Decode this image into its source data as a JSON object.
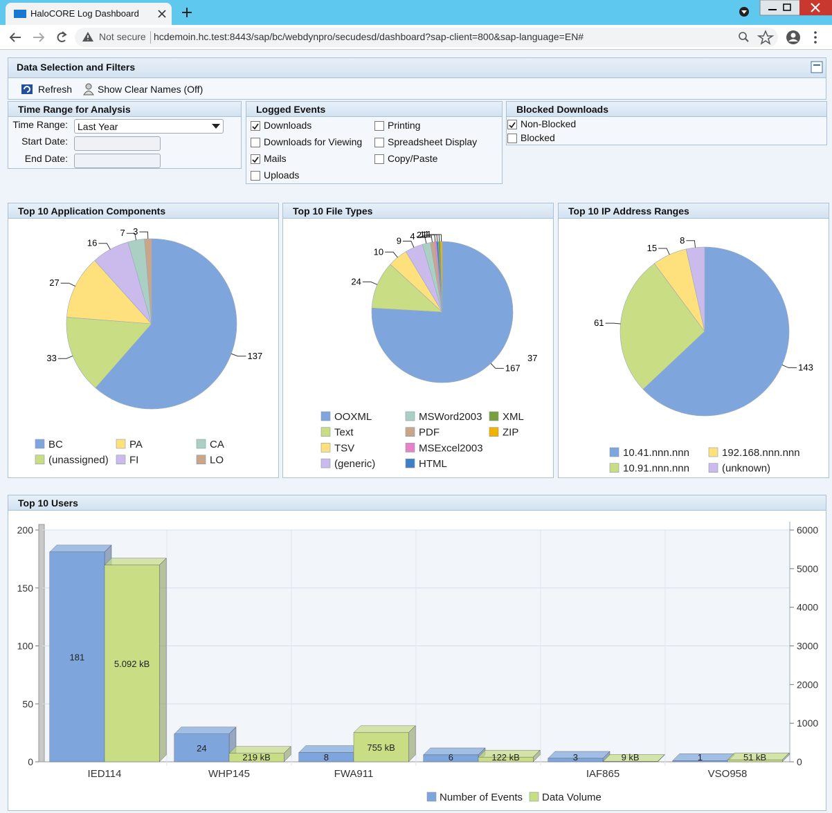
{
  "browser": {
    "tab_title": "HaloCORE Log Dashboard",
    "security": "Not secure",
    "url": "hcdemoin.hc.test:8443/sap/bc/webdynpro/secudesd/dashboard?sap-client=800&sap-language=EN#"
  },
  "filters": {
    "title": "Data Selection and Filters",
    "toolbar": [
      "Refresh",
      "Show Clear Names (Off)"
    ],
    "time_range": {
      "title": "Time Range for Analysis",
      "labels": [
        "Time Range:",
        "Start Date:",
        "End Date:"
      ],
      "selected": "Last Year"
    },
    "logged_events": {
      "title": "Logged Events",
      "options": [
        {
          "label": "Downloads",
          "checked": true
        },
        {
          "label": "Downloads for Viewing",
          "checked": false
        },
        {
          "label": "Mails",
          "checked": true
        },
        {
          "label": "Uploads",
          "checked": false
        },
        {
          "label": "Printing",
          "checked": false
        },
        {
          "label": "Spreadsheet Display",
          "checked": false
        },
        {
          "label": "Copy/Paste",
          "checked": false
        }
      ]
    },
    "blocked_downloads": {
      "title": "Blocked Downloads",
      "options": [
        {
          "label": "Non-Blocked",
          "checked": true
        },
        {
          "label": "Blocked",
          "checked": false
        }
      ]
    }
  },
  "chart_data": [
    {
      "type": "pie",
      "title": "Top 10 Application Components",
      "categories": [
        "BC",
        "(unassigned)",
        "PA",
        "FI",
        "CA",
        "LO"
      ],
      "values": [
        137,
        33,
        27,
        16,
        7,
        3
      ],
      "colors": [
        "#7fa6dc",
        "#c8dd84",
        "#fee17c",
        "#cbbbed",
        "#aad0c3",
        "#c9a68a"
      ]
    },
    {
      "type": "pie",
      "title": "Top 10 File Types",
      "categories": [
        "OOXML",
        "Text",
        "TSV",
        "(generic)",
        "MSWord2003",
        "PDF",
        "MSExcel2003",
        "HTML",
        "XML",
        "ZIP"
      ],
      "values": [
        167,
        24,
        10,
        9,
        4,
        2,
        1,
        1,
        1,
        1
      ],
      "colors": [
        "#7fa6dc",
        "#c8dd84",
        "#fee17c",
        "#cbbbed",
        "#aad0c3",
        "#c9a68a",
        "#e782c8",
        "#3f7fc2",
        "#78a13a",
        "#f2b200"
      ],
      "annotation": "37"
    },
    {
      "type": "pie",
      "title": "Top 10 IP Address Ranges",
      "categories": [
        "10.41.nnn.nnn",
        "10.91.nnn.nnn",
        "192.168.nnn.nnn",
        "(unknown)"
      ],
      "values": [
        143,
        61,
        15,
        8
      ],
      "colors": [
        "#7fa6dc",
        "#c8dd84",
        "#fee17c",
        "#cbbbed"
      ]
    },
    {
      "type": "bar",
      "title": "Top 10 Users",
      "categories": [
        "IED114",
        "WHP145",
        "FWA911",
        null,
        "IAF865",
        "VSO958"
      ],
      "series": [
        {
          "name": "Number of Events",
          "color": "#7fa6dc",
          "values": [
            181,
            24,
            8,
            6,
            3,
            1
          ]
        },
        {
          "name": "Data Volume",
          "color": "#c8dd84",
          "axis": "y2",
          "values": [
            5092,
            219,
            755,
            122,
            9,
            51
          ],
          "value_labels": [
            "5.092 kB",
            "219 kB",
            "755 kB",
            "122 kB",
            "9 kB",
            "51 kB"
          ]
        }
      ],
      "ylim": [
        0,
        200
      ],
      "yticks": [
        0,
        50,
        100,
        150,
        200
      ],
      "y2lim": [
        0,
        6000
      ],
      "y2ticks": [
        0,
        1000,
        2000,
        3000,
        4000,
        5000,
        6000
      ],
      "grid": true
    }
  ]
}
